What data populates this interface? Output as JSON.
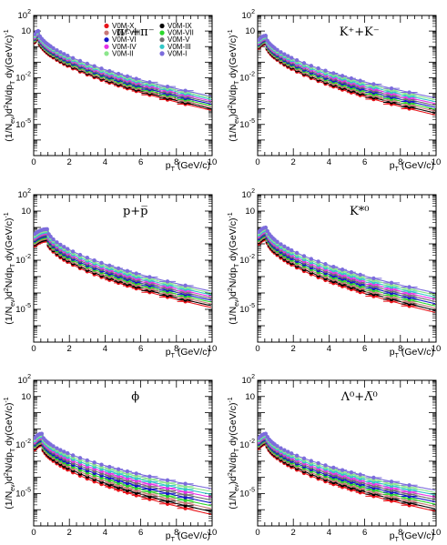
{
  "figure": {
    "xlabel": "p_T (GeV/c)",
    "ylabel": "(1/N_ev)d^2N/dp_T dy(GeV/c)^-1"
  },
  "legend": [
    {
      "name": "V0M-X",
      "color": "#e8141a"
    },
    {
      "name": "V0M-IX",
      "color": "#000000"
    },
    {
      "name": "V0M-VIII",
      "color": "#c87878"
    },
    {
      "name": "V0M-VII",
      "color": "#2cd72c"
    },
    {
      "name": "V0M-VI",
      "color": "#1414c8"
    },
    {
      "name": "V0M-V",
      "color": "#6e6e6e"
    },
    {
      "name": "V0M-IV",
      "color": "#e632e6"
    },
    {
      "name": "V0M-III",
      "color": "#32c8c8"
    },
    {
      "name": "V0M-II",
      "color": "#8ce68c"
    },
    {
      "name": "V0M-I",
      "color": "#7c6cdc"
    }
  ],
  "chart_data": [
    {
      "type": "scatter",
      "particle": "π⁺+π⁻",
      "xlim": [
        0,
        10
      ],
      "ylim_log10": [
        -7,
        2
      ],
      "x_ticks": [
        "0",
        "2",
        "4",
        "6",
        "8",
        "10"
      ],
      "y_ticks": [
        "10⁻⁵",
        "10⁻²",
        "10",
        "10²"
      ],
      "xlabel": "p_T (GeV/c)",
      "ylabel": "(1/N_ev)d^2N/dp_T dy(GeV/c)^-1",
      "peak_x": 0.25,
      "peak_log10_lowest": 0.5,
      "peak_log10_highest": 1.0,
      "end_log10_lowest": -4.1,
      "end_log10_highest": -3.2,
      "show_legend": true
    },
    {
      "type": "scatter",
      "particle": "K⁺+K⁻",
      "xlim": [
        0,
        10
      ],
      "ylim_log10": [
        -7,
        2
      ],
      "x_ticks": [
        "0",
        "2",
        "4",
        "6",
        "8",
        "10"
      ],
      "y_ticks": [
        "10⁻⁵",
        "10⁻²",
        "10",
        "10²"
      ],
      "xlabel": "p_T (GeV/c)",
      "ylabel": "(1/N_ev)d^2N/dp_T dy(GeV/c)^-1",
      "peak_x": 0.45,
      "peak_log10_lowest": 0.2,
      "peak_log10_highest": 0.7,
      "end_log10_lowest": -4.4,
      "end_log10_highest": -3.3,
      "show_legend": false
    },
    {
      "type": "scatter",
      "particle": "p+p̅",
      "xlim": [
        0,
        10
      ],
      "ylim_log10": [
        -7,
        2
      ],
      "x_ticks": [
        "0",
        "2",
        "4",
        "6",
        "8",
        "10"
      ],
      "y_ticks": [
        "10⁻⁵",
        "10⁻²",
        "10",
        "10²"
      ],
      "xlabel": "p_T (GeV/c)",
      "ylabel": "(1/N_ev)d^2N/dp_T dy(GeV/c)^-1",
      "peak_x": 0.75,
      "peak_log10_lowest": -0.8,
      "peak_log10_highest": -0.1,
      "end_log10_lowest": -4.9,
      "end_log10_highest": -3.9,
      "show_legend": false
    },
    {
      "type": "scatter",
      "particle": "K*⁰",
      "xlim": [
        0,
        10
      ],
      "ylim_log10": [
        -7,
        2
      ],
      "x_ticks": [
        "0",
        "2",
        "4",
        "6",
        "8",
        "10"
      ],
      "y_ticks": [
        "10⁻⁵",
        "10⁻²",
        "10",
        "10²"
      ],
      "xlabel": "p_T (GeV/c)",
      "ylabel": "(1/N_ev)d^2N/dp_T dy(GeV/c)^-1",
      "peak_x": 0.5,
      "peak_log10_lowest": -0.7,
      "peak_log10_highest": 0.0,
      "end_log10_lowest": -5.2,
      "end_log10_highest": -4.0,
      "show_legend": false
    },
    {
      "type": "scatter",
      "particle": "ϕ",
      "xlim": [
        0,
        10
      ],
      "ylim_log10": [
        -7,
        2
      ],
      "x_ticks": [
        "0",
        "2",
        "4",
        "6",
        "8",
        "10"
      ],
      "y_ticks": [
        "10⁻⁵",
        "10⁻²",
        "10",
        "10²"
      ],
      "xlabel": "p_T (GeV/c)",
      "ylabel": "(1/N_ev)d^2N/dp_T dy(GeV/c)^-1",
      "peak_x": 0.45,
      "peak_log10_lowest": -2.0,
      "peak_log10_highest": -1.3,
      "end_log10_lowest": -6.3,
      "end_log10_highest": -4.7,
      "show_legend": false
    },
    {
      "type": "scatter",
      "particle": "Λ⁰+Λ̅⁰",
      "xlim": [
        0,
        10
      ],
      "ylim_log10": [
        -7,
        2
      ],
      "x_ticks": [
        "0",
        "2",
        "4",
        "6",
        "8",
        "10"
      ],
      "y_ticks": [
        "10⁻⁵",
        "10⁻²",
        "10",
        "10²"
      ],
      "xlabel": "p_T (GeV/c)",
      "ylabel": "(1/N_ev)d^2N/dp_T dy(GeV/c)^-1",
      "peak_x": 0.5,
      "peak_log10_lowest": -1.9,
      "peak_log10_highest": -1.3,
      "end_log10_lowest": -6.1,
      "end_log10_highest": -4.8,
      "show_legend": false
    }
  ]
}
